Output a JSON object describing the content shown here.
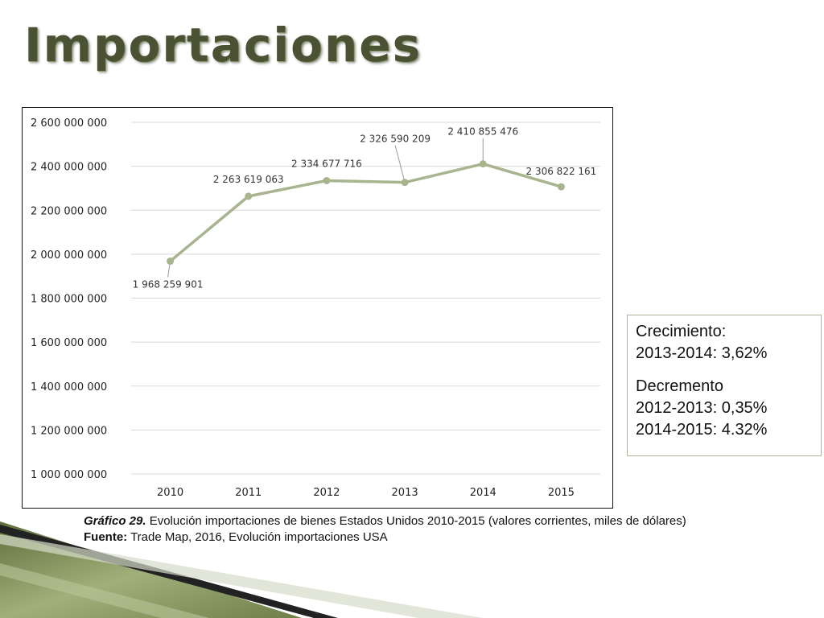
{
  "title": "Importaciones",
  "chart_data": {
    "type": "line",
    "categories": [
      "2010",
      "2011",
      "2012",
      "2013",
      "2014",
      "2015"
    ],
    "series": [
      {
        "values": [
          1968259901,
          2263619063,
          2334677716,
          2326590209,
          2410855476,
          2306822161
        ],
        "color": "#a7b48e"
      }
    ],
    "data_labels": [
      "1 968 259 901",
      "2 263 619 063",
      "2 334 677 716",
      "2 326 590 209",
      "2 410 855 476",
      "2 306 822 161"
    ],
    "y_ticks": [
      1000000000,
      1200000000,
      1400000000,
      1600000000,
      1800000000,
      2000000000,
      2200000000,
      2400000000,
      2600000000
    ],
    "y_tick_labels": [
      "1 000 000 000",
      "1 200 000 000",
      "1 400 000 000",
      "1 600 000 000",
      "1 800 000 000",
      "2 000 000 000",
      "2 200 000 000",
      "2 400 000 000",
      "2 600 000 000"
    ],
    "ylim": [
      1000000000,
      2600000000
    ],
    "grid": true,
    "legend": "none"
  },
  "stats": {
    "growth_heading": "Crecimiento:",
    "growth_line": "2013-2014: 3,62%",
    "decrease_heading": "Decremento",
    "decrease_line1": "2012-2013: 0,35%",
    "decrease_line2": "2014-2015: 4.32%"
  },
  "caption": {
    "fig_label": "Gráfico 29.",
    "fig_text": " Evolución importaciones de bienes Estados Unidos 2010-2015 (valores corrientes, miles de dólares)",
    "source_label": "Fuente:",
    "source_text": " Trade Map, 2016, Evolución importaciones USA"
  }
}
